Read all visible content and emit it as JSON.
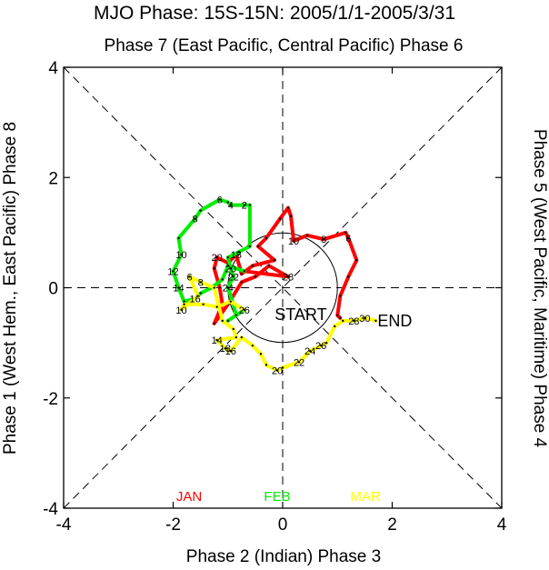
{
  "chart_data": {
    "type": "line",
    "title": "MJO Phase: 15S-15N: 2005/1/1-2005/3/31",
    "top_label": "Phase 7 (East Pacific, Central Pacific) Phase 6",
    "bottom_label": "Phase 2 (Indian) Phase 3",
    "left_label": "Phase 1 (West Hem., East Pacific) Phase 8",
    "right_label": "Phase 5 (West Pacific, Maritime) Phase 4",
    "xlim": [
      -4,
      4
    ],
    "ylim": [
      -4,
      4
    ],
    "x_ticks": [
      "-4",
      "-2",
      "0",
      "2",
      "4"
    ],
    "y_ticks": [
      "-4",
      "-2",
      "0",
      "2",
      "4"
    ],
    "start_label": "START",
    "end_label": "END",
    "colors": {
      "JAN": "#ff0000",
      "FEB": "#00ee00",
      "MAR": "#ffff00"
    },
    "series": [
      {
        "name": "JAN",
        "color": "#ff0000",
        "points": [
          [
            1.05,
            -0.55
          ],
          [
            1.0,
            -0.5
          ],
          [
            1.05,
            -0.15
          ],
          [
            1.2,
            0.2
          ],
          [
            1.35,
            0.5
          ],
          [
            1.2,
            0.9
          ],
          [
            1.15,
            1.0
          ],
          [
            0.75,
            0.88
          ],
          [
            0.45,
            0.95
          ],
          [
            0.2,
            0.85
          ],
          [
            0.15,
            1.3
          ],
          [
            0.1,
            1.45
          ],
          [
            -0.05,
            1.25
          ],
          [
            -0.3,
            0.9
          ],
          [
            -0.45,
            0.75
          ],
          [
            -0.15,
            0.5
          ],
          [
            -0.55,
            0.4
          ],
          [
            -0.75,
            0.25
          ],
          [
            -0.85,
            0.6
          ],
          [
            -1.0,
            0.45
          ],
          [
            -1.2,
            0.55
          ],
          [
            -1.25,
            0.35
          ],
          [
            -1.15,
            0.0
          ],
          [
            -1.1,
            -0.3
          ],
          [
            -1.25,
            -0.65
          ],
          [
            -1.0,
            -0.3
          ],
          [
            -0.75,
            0.1
          ],
          [
            -0.5,
            0.2
          ],
          [
            -0.25,
            0.4
          ],
          [
            0.1,
            0.2
          ],
          [
            -0.7,
            0.3
          ]
        ],
        "labels": [
          {
            "day": "6",
            "at": 5
          },
          {
            "day": "8",
            "at": 7
          },
          {
            "day": "10",
            "at": 9
          },
          {
            "day": "18",
            "at": 18
          },
          {
            "day": "20",
            "at": 20
          },
          {
            "day": "28",
            "at": 29
          }
        ]
      },
      {
        "name": "FEB",
        "color": "#00ee00",
        "points": [
          [
            -0.7,
            0.3
          ],
          [
            -1.0,
            0.4
          ],
          [
            -1.1,
            0.15
          ],
          [
            -1.3,
            0.0
          ],
          [
            -1.5,
            -0.1
          ],
          [
            -1.6,
            -0.2
          ],
          [
            -1.8,
            -0.25
          ],
          [
            -1.9,
            0.0
          ],
          [
            -2.0,
            0.3
          ],
          [
            -1.85,
            0.6
          ],
          [
            -1.9,
            0.9
          ],
          [
            -1.6,
            1.25
          ],
          [
            -1.5,
            1.4
          ],
          [
            -1.15,
            1.6
          ],
          [
            -1.0,
            1.55
          ],
          [
            -0.95,
            1.5
          ],
          [
            -0.7,
            1.5
          ],
          [
            -0.6,
            1.5
          ],
          [
            -0.6,
            0.75
          ],
          [
            -0.8,
            0.65
          ],
          [
            -1.0,
            0.55
          ],
          [
            -0.95,
            0.35
          ],
          [
            -0.9,
            0.2
          ],
          [
            -1.0,
            0.0
          ],
          [
            -0.9,
            -0.3
          ],
          [
            -0.85,
            -0.5
          ],
          [
            -1.0,
            -0.6
          ],
          [
            -0.7,
            -0.4
          ]
        ],
        "labels": [
          {
            "day": "2",
            "at": 16
          },
          {
            "day": "4",
            "at": 15
          },
          {
            "day": "6",
            "at": 13
          },
          {
            "day": "8",
            "at": 11
          },
          {
            "day": "10",
            "at": 9
          },
          {
            "day": "12",
            "at": 8
          },
          {
            "day": "14",
            "at": 7
          },
          {
            "day": "16",
            "at": 5
          },
          {
            "day": "20",
            "at": 21
          },
          {
            "day": "22",
            "at": 22
          },
          {
            "day": "24",
            "at": 23
          },
          {
            "day": "26",
            "at": 27
          }
        ]
      },
      {
        "name": "MAR",
        "color": "#ffff00",
        "points": [
          [
            -0.7,
            -0.4
          ],
          [
            -0.95,
            -0.25
          ],
          [
            -1.2,
            -0.35
          ],
          [
            -1.45,
            -0.3
          ],
          [
            -1.8,
            -0.3
          ],
          [
            -1.85,
            -0.4
          ],
          [
            -1.55,
            -0.15
          ],
          [
            -1.7,
            0.2
          ],
          [
            -1.5,
            0.1
          ],
          [
            -1.25,
            0.0
          ],
          [
            -1.1,
            -0.6
          ],
          [
            -0.9,
            -0.75
          ],
          [
            -0.85,
            -0.9
          ],
          [
            -1.2,
            -0.95
          ],
          [
            -1.05,
            -1.1
          ],
          [
            -0.95,
            -1.15
          ],
          [
            -0.75,
            -0.9
          ],
          [
            -0.55,
            -1.05
          ],
          [
            -0.4,
            -1.2
          ],
          [
            -0.3,
            -1.4
          ],
          [
            -0.1,
            -1.5
          ],
          [
            0.0,
            -1.45
          ],
          [
            0.3,
            -1.35
          ],
          [
            0.5,
            -1.15
          ],
          [
            0.7,
            -1.05
          ],
          [
            0.8,
            -1.0
          ],
          [
            0.95,
            -0.7
          ],
          [
            1.1,
            -0.6
          ],
          [
            1.3,
            -0.6
          ],
          [
            1.5,
            -0.55
          ],
          [
            1.7,
            -0.6
          ]
        ],
        "labels": [
          {
            "day": "6",
            "at": 7
          },
          {
            "day": "8",
            "at": 8
          },
          {
            "day": "10",
            "at": 5
          },
          {
            "day": "14",
            "at": 13
          },
          {
            "day": "16",
            "at": 15
          },
          {
            "day": "18",
            "at": 14
          },
          {
            "day": "20",
            "at": 20
          },
          {
            "day": "22",
            "at": 22
          },
          {
            "day": "24",
            "at": 23
          },
          {
            "day": "26",
            "at": 24
          },
          {
            "day": "28",
            "at": 28
          },
          {
            "day": "30",
            "at": 29
          }
        ]
      }
    ]
  }
}
